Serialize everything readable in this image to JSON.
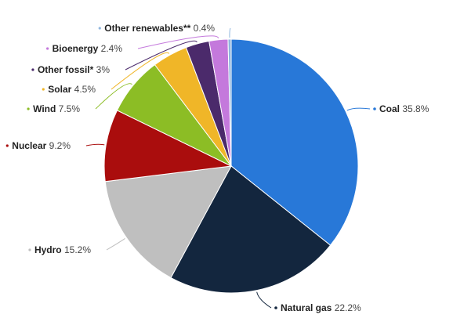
{
  "chart_data": {
    "type": "pie",
    "title": "",
    "start_angle_deg": 0,
    "direction": "clockwise",
    "slices": [
      {
        "name": "Coal",
        "display": "35.8%",
        "value": 35.8,
        "color": "#2878d8"
      },
      {
        "name": "Natural gas",
        "display": "22.2%",
        "value": 22.2,
        "color": "#13263e"
      },
      {
        "name": "Hydro",
        "display": "15.2%",
        "value": 15.2,
        "color": "#bfbfbf"
      },
      {
        "name": "Nuclear",
        "display": "9.2%",
        "value": 9.2,
        "color": "#aa0d0d"
      },
      {
        "name": "Wind",
        "display": "7.5%",
        "value": 7.5,
        "color": "#8cbd25"
      },
      {
        "name": "Solar",
        "display": "4.5%",
        "value": 4.5,
        "color": "#f0b628"
      },
      {
        "name": "Other fossil*",
        "display": "3%",
        "value": 3.0,
        "color": "#4b2a6b"
      },
      {
        "name": "Bioenergy",
        "display": "2.4%",
        "value": 2.4,
        "color": "#c479dc"
      },
      {
        "name": "Other renewables**",
        "display": "0.4%",
        "value": 0.4,
        "color": "#8fb6de"
      }
    ]
  }
}
